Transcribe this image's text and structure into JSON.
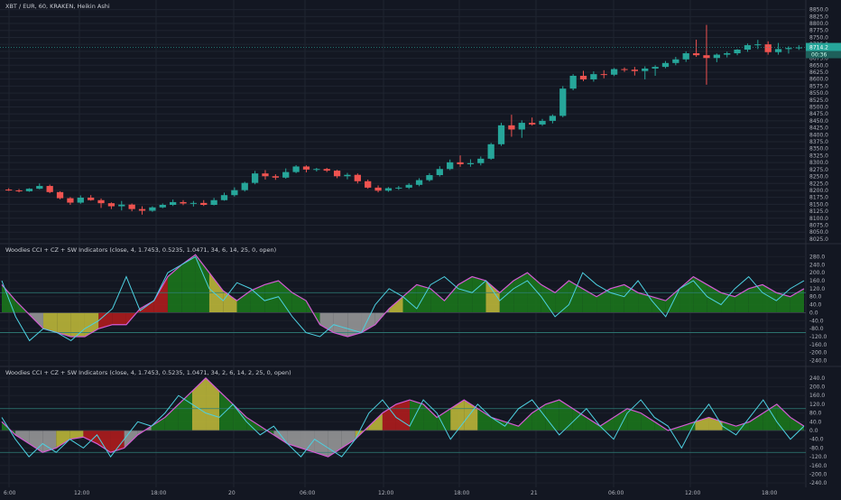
{
  "header": {
    "symbol_title": "XBT / EUR, 60, KRAKEN, Heikin Ashi",
    "panel2_title": "Woodies CCI + CZ + SW Indicators (close, 4, 1.7453, 0.5235, 1.0471, 34, 6, 14, 25, 0, open)",
    "panel3_title": "Woodies CCI + CZ + SW Indicators (close, 4, 1.7453, 0.5235, 1.0471, 34, 2, 6, 14, 2, 25, 0, open)"
  },
  "price_tags": [
    "8714.2",
    "00:36"
  ],
  "time_labels": [
    "6:00",
    "12:00",
    "18:00",
    "20",
    "06:00",
    "12:00",
    "18:00",
    "21",
    "06:00",
    "12:00",
    "18:00"
  ],
  "colors": {
    "up": "#26a69a",
    "down": "#ef5350",
    "cci": "#4dd0e1",
    "turbo": "#d45bd4",
    "green": "#1b7a1b",
    "gray": "#9e9e9e",
    "yellow": "#c6c03a",
    "red": "#b71c1c",
    "bg": "#131722"
  },
  "chart_data": [
    {
      "type": "candlestick",
      "title": "XBT / EUR, 60, KRAKEN, Heikin Ashi",
      "ylim": [
        8015,
        8865
      ],
      "y_ticks": [
        "8850.0",
        "8825.0",
        "8800.0",
        "8775.0",
        "8750.0",
        "8725.0",
        "8700.0",
        "8675.0",
        "8650.0",
        "8625.0",
        "8600.0",
        "8575.0",
        "8550.0",
        "8525.0",
        "8500.0",
        "8475.0",
        "8450.0",
        "8425.0",
        "8400.0",
        "8375.0",
        "8350.0",
        "8325.0",
        "8300.0",
        "8275.0",
        "8250.0",
        "8225.0",
        "8200.0",
        "8175.0",
        "8150.0",
        "8125.0",
        "8100.0",
        "8075.0",
        "8050.0",
        "8025.0"
      ],
      "ohlc": [
        [
          8203,
          8208,
          8198,
          8201
        ],
        [
          8200,
          8205,
          8193,
          8197
        ],
        [
          8197,
          8208,
          8195,
          8206
        ],
        [
          8206,
          8225,
          8204,
          8216
        ],
        [
          8216,
          8221,
          8190,
          8194
        ],
        [
          8194,
          8197,
          8168,
          8172
        ],
        [
          8172,
          8176,
          8148,
          8156
        ],
        [
          8156,
          8182,
          8152,
          8174
        ],
        [
          8174,
          8183,
          8163,
          8165
        ],
        [
          8165,
          8171,
          8137,
          8154
        ],
        [
          8154,
          8157,
          8133,
          8143
        ],
        [
          8143,
          8162,
          8128,
          8149
        ],
        [
          8149,
          8153,
          8125,
          8133
        ],
        [
          8133,
          8143,
          8113,
          8127
        ],
        [
          8127,
          8143,
          8123,
          8139
        ],
        [
          8139,
          8153,
          8136,
          8148
        ],
        [
          8148,
          8167,
          8144,
          8158
        ],
        [
          8158,
          8165,
          8147,
          8153
        ],
        [
          8153,
          8162,
          8142,
          8155
        ],
        [
          8155,
          8165,
          8144,
          8148
        ],
        [
          8148,
          8173,
          8146,
          8165
        ],
        [
          8165,
          8192,
          8163,
          8183
        ],
        [
          8183,
          8211,
          8178,
          8201
        ],
        [
          8201,
          8231,
          8196,
          8227
        ],
        [
          8227,
          8270,
          8222,
          8261
        ],
        [
          8261,
          8273,
          8239,
          8251
        ],
        [
          8251,
          8258,
          8238,
          8246
        ],
        [
          8246,
          8279,
          8242,
          8266
        ],
        [
          8266,
          8291,
          8262,
          8286
        ],
        [
          8286,
          8290,
          8265,
          8275
        ],
        [
          8275,
          8281,
          8268,
          8277
        ],
        [
          8277,
          8281,
          8266,
          8271
        ],
        [
          8271,
          8274,
          8244,
          8251
        ],
        [
          8251,
          8263,
          8240,
          8256
        ],
        [
          8256,
          8261,
          8225,
          8233
        ],
        [
          8233,
          8239,
          8206,
          8210
        ],
        [
          8210,
          8218,
          8193,
          8199
        ],
        [
          8199,
          8212,
          8195,
          8208
        ],
        [
          8208,
          8216,
          8202,
          8210
        ],
        [
          8210,
          8226,
          8205,
          8220
        ],
        [
          8220,
          8244,
          8215,
          8237
        ],
        [
          8237,
          8262,
          8232,
          8255
        ],
        [
          8255,
          8287,
          8250,
          8277
        ],
        [
          8277,
          8311,
          8273,
          8301
        ],
        [
          8301,
          8326,
          8285,
          8294
        ],
        [
          8294,
          8312,
          8285,
          8298
        ],
        [
          8298,
          8322,
          8290,
          8314
        ],
        [
          8314,
          8371,
          8310,
          8366
        ],
        [
          8366,
          8443,
          8360,
          8434
        ],
        [
          8434,
          8472,
          8393,
          8419
        ],
        [
          8419,
          8452,
          8389,
          8443
        ],
        [
          8443,
          8462,
          8433,
          8437
        ],
        [
          8437,
          8457,
          8432,
          8450
        ],
        [
          8450,
          8473,
          8441,
          8468
        ],
        [
          8468,
          8575,
          8463,
          8566
        ],
        [
          8566,
          8618,
          8560,
          8612
        ],
        [
          8612,
          8630,
          8593,
          8599
        ],
        [
          8599,
          8628,
          8591,
          8618
        ],
        [
          8618,
          8632,
          8603,
          8616
        ],
        [
          8616,
          8640,
          8611,
          8636
        ],
        [
          8636,
          8642,
          8626,
          8634
        ],
        [
          8634,
          8644,
          8613,
          8629
        ],
        [
          8629,
          8646,
          8599,
          8638
        ],
        [
          8638,
          8650,
          8612,
          8644
        ],
        [
          8644,
          8665,
          8639,
          8658
        ],
        [
          8658,
          8680,
          8650,
          8671
        ],
        [
          8671,
          8700,
          8662,
          8693
        ],
        [
          8693,
          8742,
          8680,
          8686
        ],
        [
          8686,
          8795,
          8580,
          8676
        ],
        [
          8676,
          8692,
          8661,
          8688
        ],
        [
          8688,
          8699,
          8678,
          8693
        ],
        [
          8693,
          8708,
          8686,
          8706
        ],
        [
          8706,
          8728,
          8698,
          8722
        ],
        [
          8722,
          8741,
          8708,
          8725
        ],
        [
          8725,
          8736,
          8688,
          8697
        ],
        [
          8697,
          8730,
          8688,
          8708
        ],
        [
          8708,
          8718,
          8692,
          8712
        ],
        [
          8712,
          8722,
          8705,
          8714
        ]
      ]
    },
    {
      "type": "area",
      "title": "Woodies CCI + CZ + SW Indicators (close, 4, 1.7453, 0.5235, 1.0471, 34, 6, 14, 25, 0, open)",
      "ylim": [
        -260,
        300
      ],
      "y_ticks": [
        "280.0",
        "240.0",
        "200.0",
        "160.0",
        "120.0",
        "80.0",
        "40.0",
        "0.0",
        "-40.0",
        "-80.0",
        "-120.0",
        "-160.0",
        "-200.0",
        "-240.0"
      ],
      "levels": [
        100,
        -100
      ],
      "series": [
        {
          "values": [
            140,
            60,
            -10,
            -80,
            -100,
            -120,
            -120,
            -80,
            -60,
            -60,
            20,
            60,
            180,
            240,
            290,
            200,
            110,
            60,
            110,
            140,
            160,
            100,
            60,
            -60,
            -100,
            -120,
            -100,
            -60,
            20,
            80,
            140,
            120,
            60,
            140,
            180,
            160,
            100,
            160,
            200,
            140,
            100,
            160,
            120,
            80,
            120,
            140,
            100,
            80,
            60,
            120,
            180,
            140,
            100,
            80,
            120,
            140,
            100,
            80,
            120
          ]
        },
        {
          "values": [
            160,
            -20,
            -140,
            -80,
            -100,
            -140,
            -80,
            -40,
            20,
            180,
            10,
            60,
            200,
            240,
            280,
            120,
            60,
            150,
            120,
            60,
            80,
            -20,
            -100,
            -120,
            -60,
            -80,
            -100,
            40,
            120,
            80,
            20,
            140,
            180,
            120,
            100,
            160,
            60,
            120,
            160,
            80,
            -20,
            40,
            200,
            140,
            100,
            80,
            160,
            60,
            -20,
            120,
            160,
            80,
            40,
            120,
            180,
            100,
            60,
            120,
            160
          ]
        }
      ]
    },
    {
      "type": "area",
      "title": "Woodies CCI + CZ + SW Indicators (close, 4, 1.7453, 0.5235, 1.0471, 34, 2, 6, 14, 2, 25, 0, open)",
      "ylim": [
        -260,
        260
      ],
      "y_ticks": [
        "240.0",
        "200.0",
        "160.0",
        "120.0",
        "80.0",
        "40.0",
        "0.0",
        "-40.0",
        "-80.0",
        "-120.0",
        "-160.0",
        "-200.0",
        "-240.0"
      ],
      "levels": [
        100,
        -100
      ],
      "series": [
        {
          "values": [
            40,
            -20,
            -60,
            -100,
            -80,
            -40,
            -30,
            -60,
            -100,
            -80,
            -20,
            20,
            60,
            120,
            180,
            240,
            180,
            120,
            60,
            20,
            -20,
            -60,
            -80,
            -100,
            -120,
            -80,
            -40,
            20,
            80,
            120,
            140,
            120,
            60,
            100,
            140,
            100,
            60,
            40,
            20,
            80,
            120,
            140,
            100,
            60,
            20,
            60,
            100,
            80,
            40,
            0,
            20,
            40,
            60,
            40,
            20,
            40,
            80,
            120,
            60,
            20
          ]
        },
        {
          "values": [
            60,
            -40,
            -120,
            -60,
            -100,
            -40,
            -80,
            -20,
            -120,
            -40,
            40,
            20,
            80,
            160,
            120,
            80,
            60,
            120,
            40,
            -20,
            20,
            -60,
            -120,
            -40,
            -80,
            -120,
            -40,
            80,
            140,
            60,
            20,
            140,
            80,
            -40,
            40,
            120,
            60,
            20,
            100,
            140,
            60,
            -20,
            40,
            100,
            20,
            -40,
            80,
            140,
            60,
            20,
            -80,
            40,
            120,
            20,
            -20,
            60,
            140,
            40,
            -40,
            20
          ]
        }
      ]
    }
  ]
}
